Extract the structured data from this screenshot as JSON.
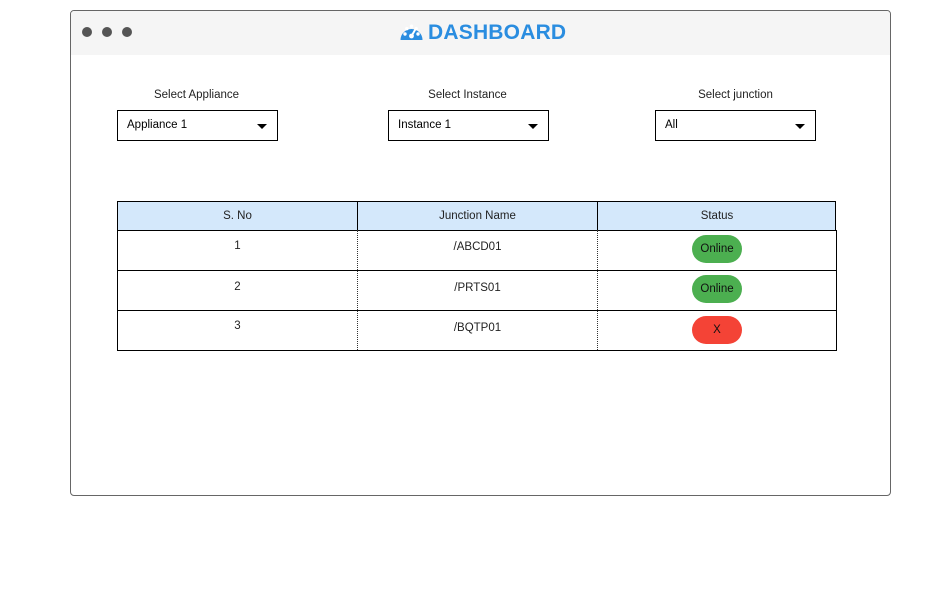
{
  "header": {
    "title": "DASHBOARD",
    "icon": "speedometer-icon",
    "accent_color": "#2a8de0"
  },
  "filters": {
    "appliance": {
      "label": "Select Appliance",
      "value": "Appliance 1"
    },
    "instance": {
      "label": "Select Instance",
      "value": "Instance 1"
    },
    "junction": {
      "label": "Select junction",
      "value": "All"
    }
  },
  "table": {
    "columns": [
      "S. No",
      "Junction Name",
      "Status"
    ],
    "rows": [
      {
        "sno": "1",
        "name": "/ABCD01",
        "status": "Online",
        "status_color": "#4caf50"
      },
      {
        "sno": "2",
        "name": "/PRTS01",
        "status": "Online",
        "status_color": "#4caf50"
      },
      {
        "sno": "3",
        "name": "/BQTP01",
        "status": "X",
        "status_color": "#f44336"
      }
    ]
  }
}
